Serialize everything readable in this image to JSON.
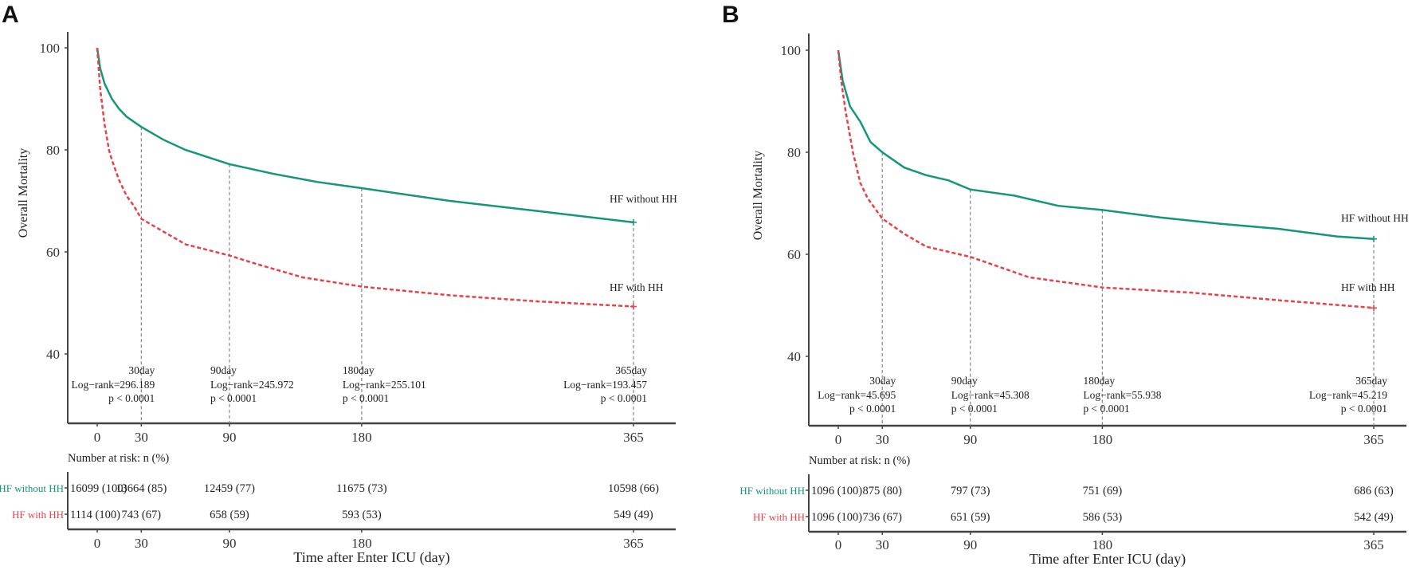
{
  "colors": {
    "without": "#14967a",
    "with": "#e8414b",
    "axis": "#444444",
    "guide": "#888888"
  },
  "chart_data": [
    {
      "type": "line",
      "panel_label": "A",
      "xlabel": "Time after Enter ICU (day)",
      "ylabel": "Overall Mortality",
      "xticks": [
        0,
        30,
        90,
        180,
        365
      ],
      "yticks": [
        40,
        60,
        80,
        100
      ],
      "xlim": [
        0,
        365
      ],
      "ylim": [
        40,
        100
      ],
      "series": [
        {
          "name": "HF without HH",
          "style": "solid",
          "x": [
            0,
            2,
            5,
            10,
            15,
            20,
            30,
            45,
            60,
            90,
            120,
            150,
            180,
            240,
            300,
            365
          ],
          "y": [
            100,
            96,
            93,
            90,
            88,
            86.5,
            84.5,
            82,
            80,
            77.2,
            75.3,
            73.7,
            72.5,
            70,
            68,
            65.8
          ]
        },
        {
          "name": "HF with HH",
          "style": "dashed",
          "x": [
            0,
            2,
            5,
            8,
            10,
            15,
            20,
            25,
            30,
            45,
            60,
            90,
            110,
            140,
            180,
            240,
            300,
            365
          ],
          "y": [
            100,
            92,
            85,
            80,
            78,
            74,
            71,
            69,
            66.5,
            64,
            61.5,
            59.3,
            57.5,
            55,
            53.2,
            51.5,
            50.3,
            49.3
          ]
        }
      ],
      "annotations": [
        {
          "day": 30,
          "label": "30day",
          "logrank": "Log−rank=296.189",
          "p": "p < 0.0001"
        },
        {
          "day": 90,
          "label": "90day",
          "logrank": "Log−rank=245.972",
          "p": "p < 0.0001"
        },
        {
          "day": 180,
          "label": "180day",
          "logrank": "Log−rank=255.101",
          "p": "p < 0.0001"
        },
        {
          "day": 365,
          "label": "365day",
          "logrank": "Log−rank=193.457",
          "p": "p < 0.0001"
        }
      ],
      "risk_table": {
        "title": "Number at risk: n (%)",
        "rows": [
          {
            "name": "HF without HH",
            "values": [
              "16099 (100)",
              "13664 (85)",
              "12459 (77)",
              "11675 (73)",
              "10598 (66)"
            ]
          },
          {
            "name": "HF with HH",
            "values": [
              "1114 (100)",
              "743 (67)",
              "658 (59)",
              "593 (53)",
              "549 (49)"
            ]
          }
        ]
      }
    },
    {
      "type": "line",
      "panel_label": "B",
      "xlabel": "Time after Enter ICU (day)",
      "ylabel": "Overall Mortality",
      "xticks": [
        0,
        30,
        90,
        180,
        365
      ],
      "yticks": [
        40,
        60,
        80,
        100
      ],
      "xlim": [
        0,
        365
      ],
      "ylim": [
        40,
        100
      ],
      "series": [
        {
          "name": "HF without HH",
          "style": "solid",
          "x": [
            0,
            3,
            8,
            15,
            22,
            30,
            45,
            60,
            75,
            90,
            120,
            150,
            180,
            220,
            260,
            300,
            340,
            365
          ],
          "y": [
            100,
            94,
            89,
            86,
            82,
            80,
            77,
            75.5,
            74.5,
            72.7,
            71.5,
            69.5,
            68.7,
            67.2,
            66,
            65,
            63.5,
            63
          ]
        },
        {
          "name": "HF with HH",
          "style": "dashed",
          "x": [
            0,
            2,
            5,
            10,
            15,
            20,
            30,
            45,
            60,
            90,
            110,
            130,
            180,
            240,
            300,
            365
          ],
          "y": [
            100,
            94,
            88,
            80,
            74,
            71,
            67,
            64,
            61.5,
            59.5,
            57.5,
            55.5,
            53.5,
            52.5,
            51,
            49.5
          ]
        }
      ],
      "annotations": [
        {
          "day": 30,
          "label": "30day",
          "logrank": "Log−rank=45.695",
          "p": "p < 0.0001"
        },
        {
          "day": 90,
          "label": "90day",
          "logrank": "Log−rank=45.308",
          "p": "p < 0.0001"
        },
        {
          "day": 180,
          "label": "180day",
          "logrank": "Log−rank=55.938",
          "p": "p < 0.0001"
        },
        {
          "day": 365,
          "label": "365day",
          "logrank": "Log−rank=45.219",
          "p": "p < 0.0001"
        }
      ],
      "risk_table": {
        "title": "Number at risk: n (%)",
        "rows": [
          {
            "name": "HF without HH",
            "values": [
              "1096 (100)",
              "875 (80)",
              "797 (73)",
              "751 (69)",
              "686 (63)"
            ]
          },
          {
            "name": "HF with HH",
            "values": [
              "1096 (100)",
              "736 (67)",
              "651 (59)",
              "586 (53)",
              "542 (49)"
            ]
          }
        ]
      }
    }
  ]
}
